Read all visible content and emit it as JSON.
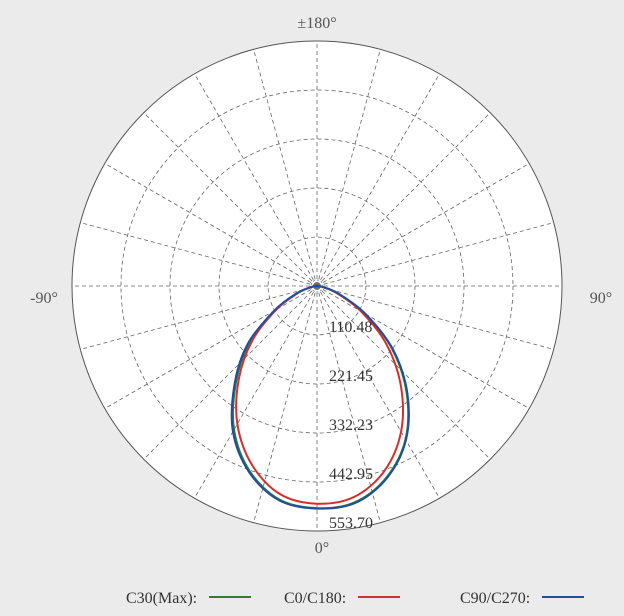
{
  "chart_data": {
    "type": "polar",
    "angle_labels": {
      "top": "±180°",
      "left": "-90°",
      "right": "90°",
      "bottom": "0°"
    },
    "radial_labels": [
      "110.48",
      "221.45",
      "332.23",
      "442.95",
      "553.70"
    ],
    "radial_values": [
      110.48,
      221.45,
      332.23,
      442.95,
      553.7
    ],
    "rlim": [
      0,
      553.7
    ],
    "radial_max": 553.7,
    "angular_gridlines_deg": 15,
    "grid": true,
    "legend_position": "bottom",
    "series": [
      {
        "name": "C30(Max):",
        "color": "#2e7d32",
        "angles_deg": [
          -90,
          -80,
          -70,
          -60,
          -50,
          -40,
          -30,
          -20,
          -10,
          0,
          10,
          20,
          30,
          40,
          50,
          60,
          70,
          80,
          90
        ],
        "values": [
          0,
          12,
          48,
          110,
          200,
          285,
          375,
          445,
          490,
          502,
          496,
          460,
          400,
          315,
          222,
          125,
          52,
          14,
          0
        ]
      },
      {
        "name": "C0/C180:",
        "color": "#d32f2f",
        "angles_deg": [
          -90,
          -80,
          -70,
          -60,
          -50,
          -40,
          -30,
          -20,
          -10,
          0,
          10,
          20,
          30,
          40,
          50,
          60,
          70,
          80,
          90
        ],
        "values": [
          0,
          12,
          45,
          105,
          190,
          275,
          360,
          430,
          478,
          492,
          484,
          445,
          380,
          295,
          205,
          115,
          48,
          12,
          0
        ]
      },
      {
        "name": "C90/C270:",
        "color": "#1f4e9e",
        "angles_deg": [
          -90,
          -80,
          -70,
          -60,
          -50,
          -40,
          -30,
          -20,
          -10,
          0,
          10,
          20,
          30,
          40,
          50,
          60,
          70,
          80,
          90
        ],
        "values": [
          0,
          13,
          50,
          112,
          205,
          290,
          380,
          448,
          492,
          503,
          498,
          462,
          402,
          318,
          225,
          127,
          54,
          15,
          0
        ]
      }
    ]
  }
}
